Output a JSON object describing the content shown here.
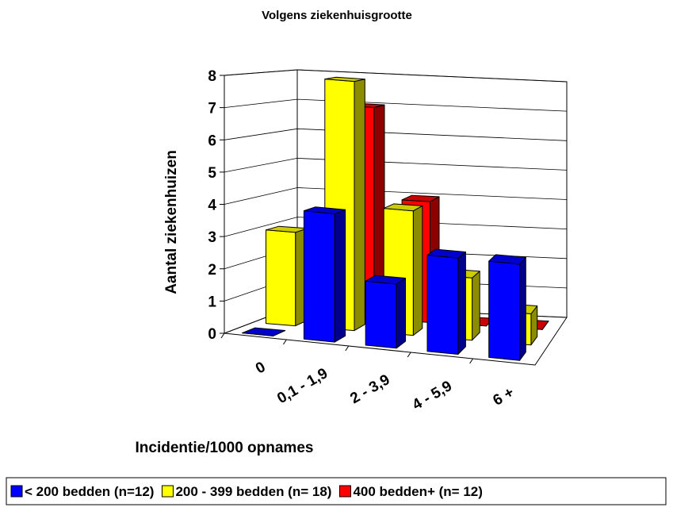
{
  "chart_data": {
    "type": "bar3d",
    "title": "Volgens ziekenhuisgrootte",
    "x_label": "Incidentie/1000 opnames",
    "y_label": "Aantal ziekenhuizen",
    "categories": [
      "0",
      "0,1 - 1,9",
      "2 - 3,9",
      "4 - 5,9",
      "6 +"
    ],
    "series": [
      {
        "name": "< 200 bedden (n=12)",
        "color": "#0000ff",
        "values": [
          0,
          4,
          2,
          3,
          3
        ]
      },
      {
        "name": "200 - 399 bedden (n= 18)",
        "color": "#ffff00",
        "values": [
          3,
          8,
          4,
          2,
          1
        ]
      },
      {
        "name": "400 bedden+ (n= 12)",
        "color": "#ff0000",
        "values": [
          1,
          7,
          4,
          0,
          0
        ]
      }
    ],
    "ylim": [
      0,
      8
    ],
    "yticks": [
      0,
      1,
      2,
      3,
      4,
      5,
      6,
      7,
      8
    ],
    "grid": true,
    "legend": "bottom"
  }
}
